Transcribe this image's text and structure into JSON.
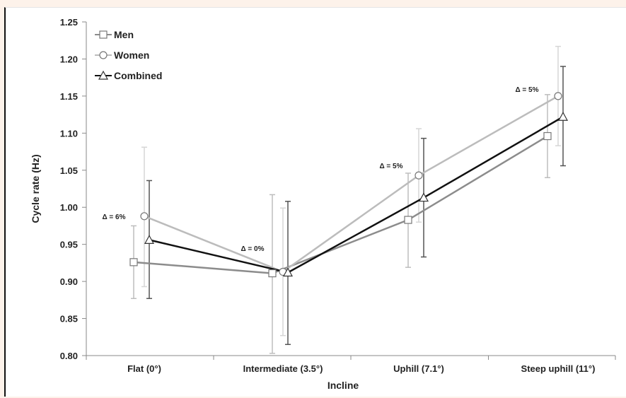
{
  "chart_data": {
    "type": "line",
    "categories": [
      "Flat (0°)",
      "Intermediate (3.5°)",
      "Uphill (7.1°)",
      "Steep uphill (11°)"
    ],
    "series": [
      {
        "name": "Men",
        "marker": "square",
        "color": "#8c8c8c",
        "err_color": "#bdbdbd",
        "values": [
          0.926,
          0.911,
          0.983,
          1.096
        ],
        "err_low": [
          0.877,
          0.803,
          0.919,
          1.04
        ],
        "err_high": [
          0.975,
          1.017,
          1.046,
          1.152
        ]
      },
      {
        "name": "Women",
        "marker": "circle",
        "color": "#bcbcbc",
        "err_color": "#d6d6d6",
        "values": [
          0.988,
          0.913,
          1.043,
          1.15
        ],
        "err_low": [
          0.893,
          0.827,
          0.98,
          1.083
        ],
        "err_high": [
          1.081,
          0.999,
          1.106,
          1.217
        ]
      },
      {
        "name": "Combined",
        "marker": "triangle",
        "color": "#111111",
        "err_color": "#555555",
        "values": [
          0.956,
          0.912,
          1.013,
          1.122
        ],
        "err_low": [
          0.877,
          0.815,
          0.933,
          1.056
        ],
        "err_high": [
          1.036,
          1.008,
          1.093,
          1.19
        ]
      }
    ],
    "annotations": [
      "Δ = 6%",
      "Δ = 0%",
      "Δ = 5%",
      "Δ = 5%"
    ],
    "xlabel": "Incline",
    "ylabel": "Cycle rate (Hz)",
    "ylim": [
      0.8,
      1.25
    ],
    "yticks": [
      "0.80",
      "0.85",
      "0.90",
      "0.95",
      "1.00",
      "1.05",
      "1.10",
      "1.15",
      "1.20",
      "1.25"
    ],
    "grid": false,
    "legend_position": "top-left"
  }
}
